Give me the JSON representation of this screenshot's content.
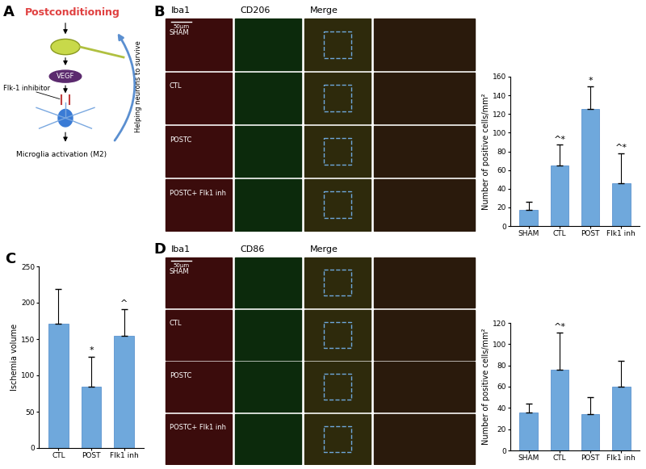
{
  "panel_labels": [
    "A",
    "B",
    "C",
    "D"
  ],
  "diagram": {
    "title": "Postconditioning",
    "ligand": "VEGF",
    "inhibitor": "Flk-1 inhibitor",
    "outcome": "Microglia activation (M2)",
    "feedback": "Helping neurons to survive"
  },
  "image_grids": [
    {
      "columns": [
        "Iba1",
        "CD206",
        "Merge"
      ],
      "rows": [
        "SHAM",
        "CTL",
        "POSTC",
        "POSTC+ Flk1 inh"
      ],
      "scale_bar": "50μm"
    },
    {
      "columns": [
        "Iba1",
        "CD86",
        "Merge"
      ],
      "rows": [
        "SHAM",
        "CTL",
        "POSTC",
        "POSTC+ Flk1 inh"
      ],
      "scale_bar": "50μm"
    }
  ],
  "chart_data": [
    {
      "type": "bar",
      "y_label": "Number of positive cells/mm²",
      "categories": [
        "SHAM",
        "CTL",
        "POST",
        "Flk1 inh"
      ],
      "values": [
        17,
        65,
        125,
        46
      ],
      "errors": [
        9,
        22,
        25,
        32
      ],
      "annotations": [
        null,
        "^*",
        "*",
        "^*"
      ],
      "color": "#6fa8dc",
      "ylim": [
        0,
        160
      ],
      "yticks": [
        0,
        20,
        40,
        60,
        80,
        100,
        120,
        140,
        160
      ]
    },
    {
      "type": "bar",
      "y_label": "Ischemia volume",
      "categories": [
        "CTL",
        "POST",
        "Flk1 inh"
      ],
      "values": [
        171,
        84,
        155
      ],
      "errors": [
        48,
        42,
        36
      ],
      "annotations": [
        null,
        "*",
        "^"
      ],
      "color": "#6fa8dc",
      "ylim": [
        0,
        250
      ],
      "yticks": [
        0,
        50,
        100,
        150,
        200,
        250
      ]
    },
    {
      "type": "bar",
      "y_label": "Number of positive cells/mm²",
      "categories": [
        "SHAM",
        "CTL",
        "POST",
        "Flk1 inh"
      ],
      "values": [
        36,
        76,
        34,
        60
      ],
      "errors": [
        8,
        35,
        16,
        24
      ],
      "annotations": [
        null,
        "^*",
        null,
        null
      ],
      "color": "#6fa8dc",
      "ylim": [
        0,
        120
      ],
      "yticks": [
        0,
        20,
        40,
        60,
        80,
        100,
        120
      ]
    }
  ]
}
